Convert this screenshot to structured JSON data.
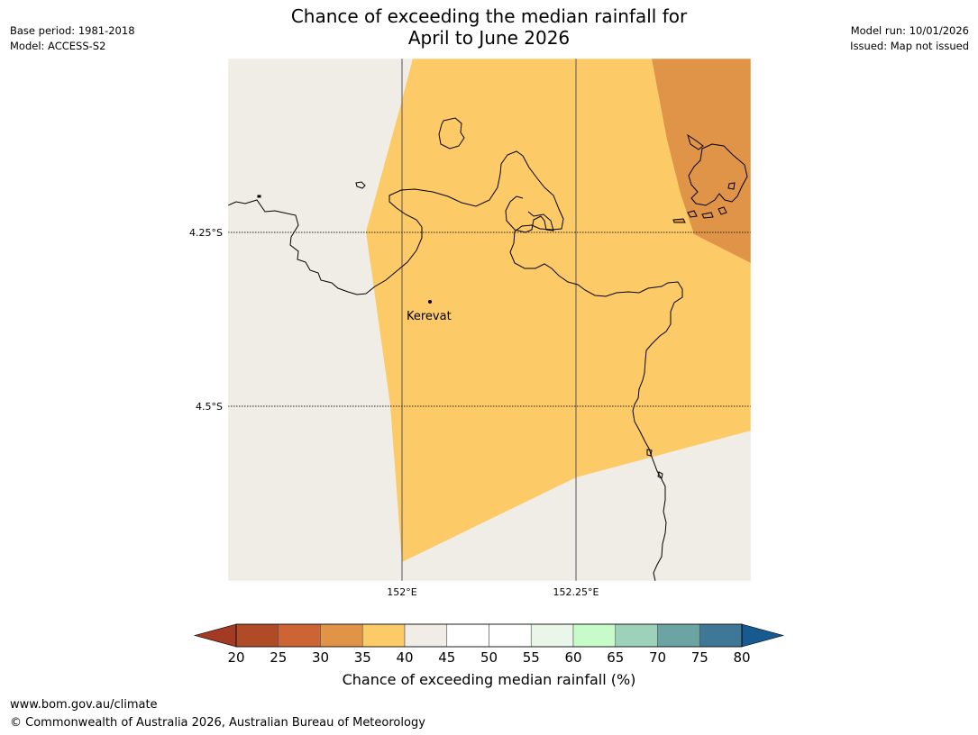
{
  "title": {
    "line1": "Chance of exceeding the median rainfall for",
    "line2": "April to June 2026"
  },
  "meta_left": {
    "base_period": "Base period: 1981-2018",
    "model": "Model: ACCESS-S2"
  },
  "meta_right": {
    "model_run": "Model run: 10/01/2026",
    "issued": "Issued: Map not issued"
  },
  "map": {
    "lat_labels": [
      "4.25°S",
      "4.5°S"
    ],
    "lon_labels": [
      "152°E",
      "152.25°E"
    ],
    "place_label": "Kerevat",
    "colors": {
      "background": "#f0ece6",
      "band_35_40": "#fdca68",
      "band_30_35": "#e09447",
      "coastline": "#000000",
      "gridline": "#555555"
    }
  },
  "colorbar": {
    "title": "Chance of exceeding median rainfall (%)",
    "ticks": [
      "20",
      "25",
      "30",
      "35",
      "40",
      "45",
      "50",
      "55",
      "60",
      "65",
      "70",
      "75",
      "80"
    ],
    "colors": [
      "#a33a24",
      "#b04b27",
      "#cd6433",
      "#e09447",
      "#fdca68",
      "#f0ece6",
      "#ffffff",
      "#ffffff",
      "#ebf6eb",
      "#c8fbca",
      "#9dd1b9",
      "#6ca4a4",
      "#3f7797",
      "#175a8f"
    ]
  },
  "footer": {
    "url": "www.bom.gov.au/climate",
    "copyright": "© Commonwealth of Australia 2026, Australian Bureau of Meteorology"
  }
}
